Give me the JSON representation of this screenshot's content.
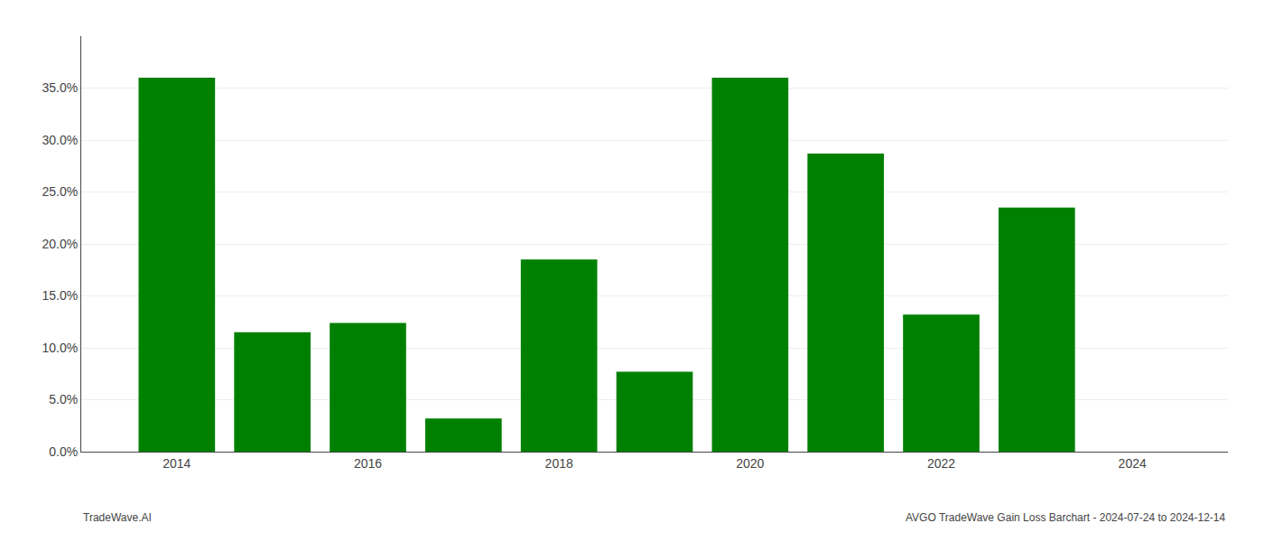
{
  "chart_data": {
    "type": "bar",
    "x": [
      2014,
      2015,
      2016,
      2017,
      2018,
      2019,
      2020,
      2021,
      2022,
      2023,
      2024
    ],
    "values": [
      0.36,
      0.115,
      0.124,
      0.032,
      0.185,
      0.077,
      0.36,
      0.287,
      0.132,
      0.235,
      0.0
    ],
    "color": "#008000",
    "xlim": [
      2013.0,
      2025.0
    ],
    "xticks": [
      2014,
      2016,
      2018,
      2020,
      2022,
      2024
    ],
    "ylim": [
      0.0,
      0.4
    ],
    "yticks": [
      {
        "value": 0.0,
        "label": "0.0%"
      },
      {
        "value": 0.05,
        "label": "5.0%"
      },
      {
        "value": 0.1,
        "label": "10.0%"
      },
      {
        "value": 0.15,
        "label": "15.0%"
      },
      {
        "value": 0.2,
        "label": "20.0%"
      },
      {
        "value": 0.25,
        "label": "25.0%"
      },
      {
        "value": 0.3,
        "label": "30.0%"
      },
      {
        "value": 0.35,
        "label": "35.0%"
      }
    ],
    "grid": true,
    "annotations": [
      "TradeWave.AI",
      "AVGO TradeWave Gain Loss Barchart - 2024-07-24 to 2024-12-14"
    ]
  }
}
